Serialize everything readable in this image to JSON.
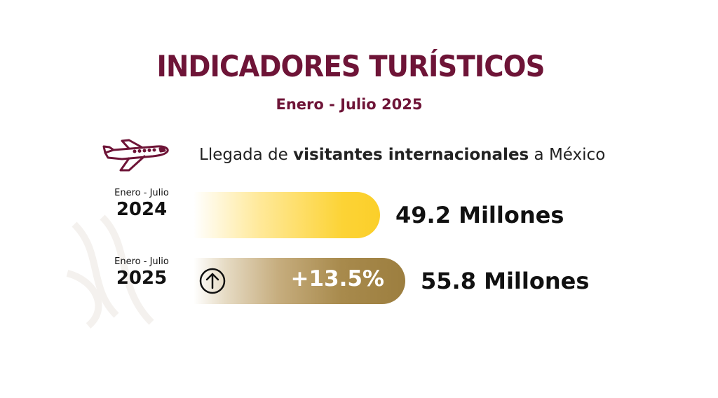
{
  "title": "INDICADORES TURÍSTICOS",
  "subtitle": "Enero - Julio 2025",
  "description": {
    "prefix": "Llegada de ",
    "bold": "visitantes internacionales",
    "suffix": " a México"
  },
  "icons": {
    "plane": "airplane-icon",
    "arrow": "arrow-up-circle-icon"
  },
  "colors": {
    "title": "#6e1437",
    "bar_2024": "#fbcf2a",
    "bar_2025": "#9c7e3f"
  },
  "chart_data": {
    "type": "bar",
    "categories": [
      "2024",
      "2025"
    ],
    "values": [
      49.2,
      55.8
    ],
    "category_period": "Enero - Julio",
    "value_labels": [
      "49.2 Millones",
      "55.8 Millones"
    ],
    "change_label": "+13.5%",
    "title": "INDICADORES TURÍSTICOS",
    "subtitle": "Enero - Julio 2025",
    "xlabel": "",
    "ylabel": ""
  }
}
